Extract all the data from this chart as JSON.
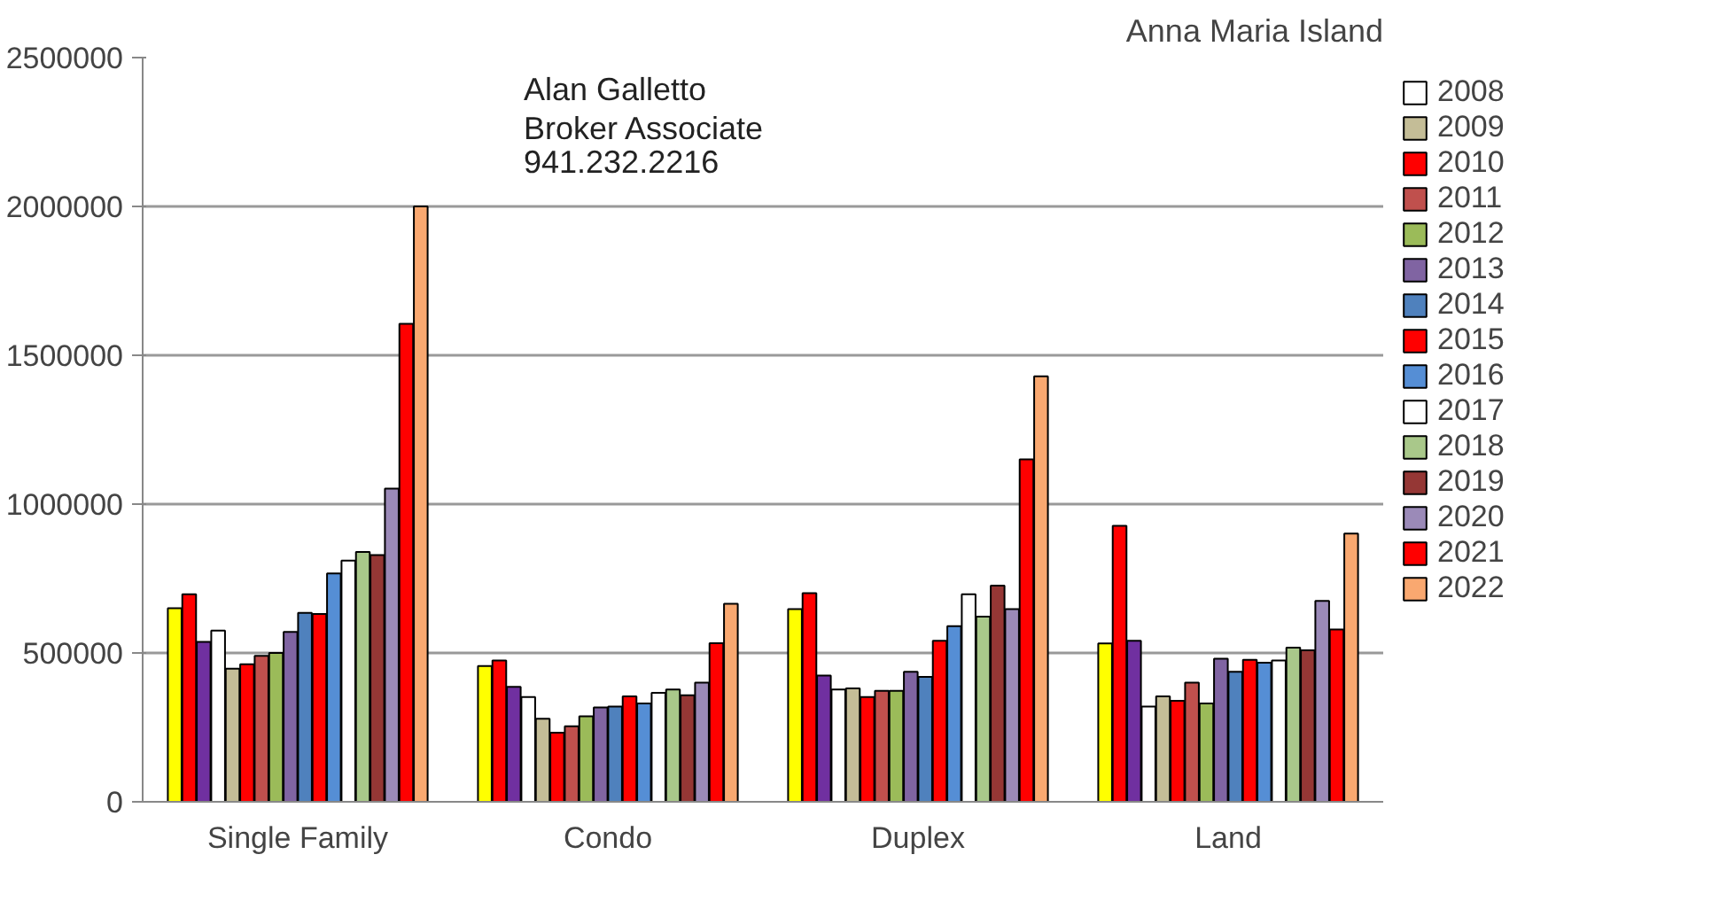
{
  "chart_data": {
    "type": "bar",
    "title": "Anna Maria Island",
    "categories": [
      "Single Family",
      "Condo",
      "Duplex",
      "Land"
    ],
    "ylim": [
      0,
      2500000
    ],
    "yticks": [
      0,
      500000,
      1000000,
      1500000,
      2000000,
      2500000
    ],
    "grid": "y",
    "legend": "right",
    "annotations": [
      "Alan Galletto",
      "Broker Associate",
      "941.232.2216"
    ],
    "series": [
      {
        "color": "#ffff00",
        "values": [
          650000,
          456000,
          647000,
          532000
        ]
      },
      {
        "color": "#ff0000",
        "values": [
          697000,
          475000,
          701000,
          927000
        ]
      },
      {
        "color": "#7030a0",
        "values": [
          537000,
          386000,
          424000,
          541000
        ]
      },
      {
        "name": "2008",
        "color": "#ffffff",
        "values": [
          575000,
          352000,
          377000,
          320000
        ]
      },
      {
        "name": "2009",
        "color": "#c4bd97",
        "values": [
          447000,
          279000,
          381000,
          354000
        ]
      },
      {
        "name": "2010",
        "color": "#ff0000",
        "values": [
          462000,
          232000,
          352000,
          339000
        ]
      },
      {
        "name": "2011",
        "color": "#c0504d",
        "values": [
          490000,
          254000,
          373000,
          400000
        ]
      },
      {
        "name": "2012",
        "color": "#9bbb59",
        "values": [
          500000,
          287000,
          373000,
          330000
        ]
      },
      {
        "name": "2013",
        "color": "#8064a2",
        "values": [
          571000,
          317000,
          437000,
          481000
        ]
      },
      {
        "name": "2014",
        "color": "#4f81bd",
        "values": [
          635000,
          320000,
          420000,
          437000
        ]
      },
      {
        "name": "2015",
        "color": "#ff0000",
        "values": [
          631000,
          354000,
          541000,
          477000
        ]
      },
      {
        "name": "2016",
        "color": "#558ed5",
        "values": [
          767000,
          330000,
          590000,
          467000
        ]
      },
      {
        "name": "2017",
        "color": "#ffffff",
        "values": [
          810000,
          366000,
          697000,
          475000
        ]
      },
      {
        "name": "2018",
        "color": "#a9c88a",
        "values": [
          839000,
          377000,
          622000,
          518000
        ]
      },
      {
        "name": "2019",
        "color": "#953735",
        "values": [
          829000,
          358000,
          726000,
          509000
        ]
      },
      {
        "name": "2020",
        "color": "#9b8ab8",
        "values": [
          1052000,
          400000,
          647000,
          675000
        ]
      },
      {
        "name": "2021",
        "color": "#ff0000",
        "values": [
          1606000,
          533000,
          1150000,
          579000
        ]
      },
      {
        "name": "2022",
        "color": "#f9a870",
        "values": [
          2000000,
          665000,
          1429000,
          901000
        ]
      }
    ]
  }
}
